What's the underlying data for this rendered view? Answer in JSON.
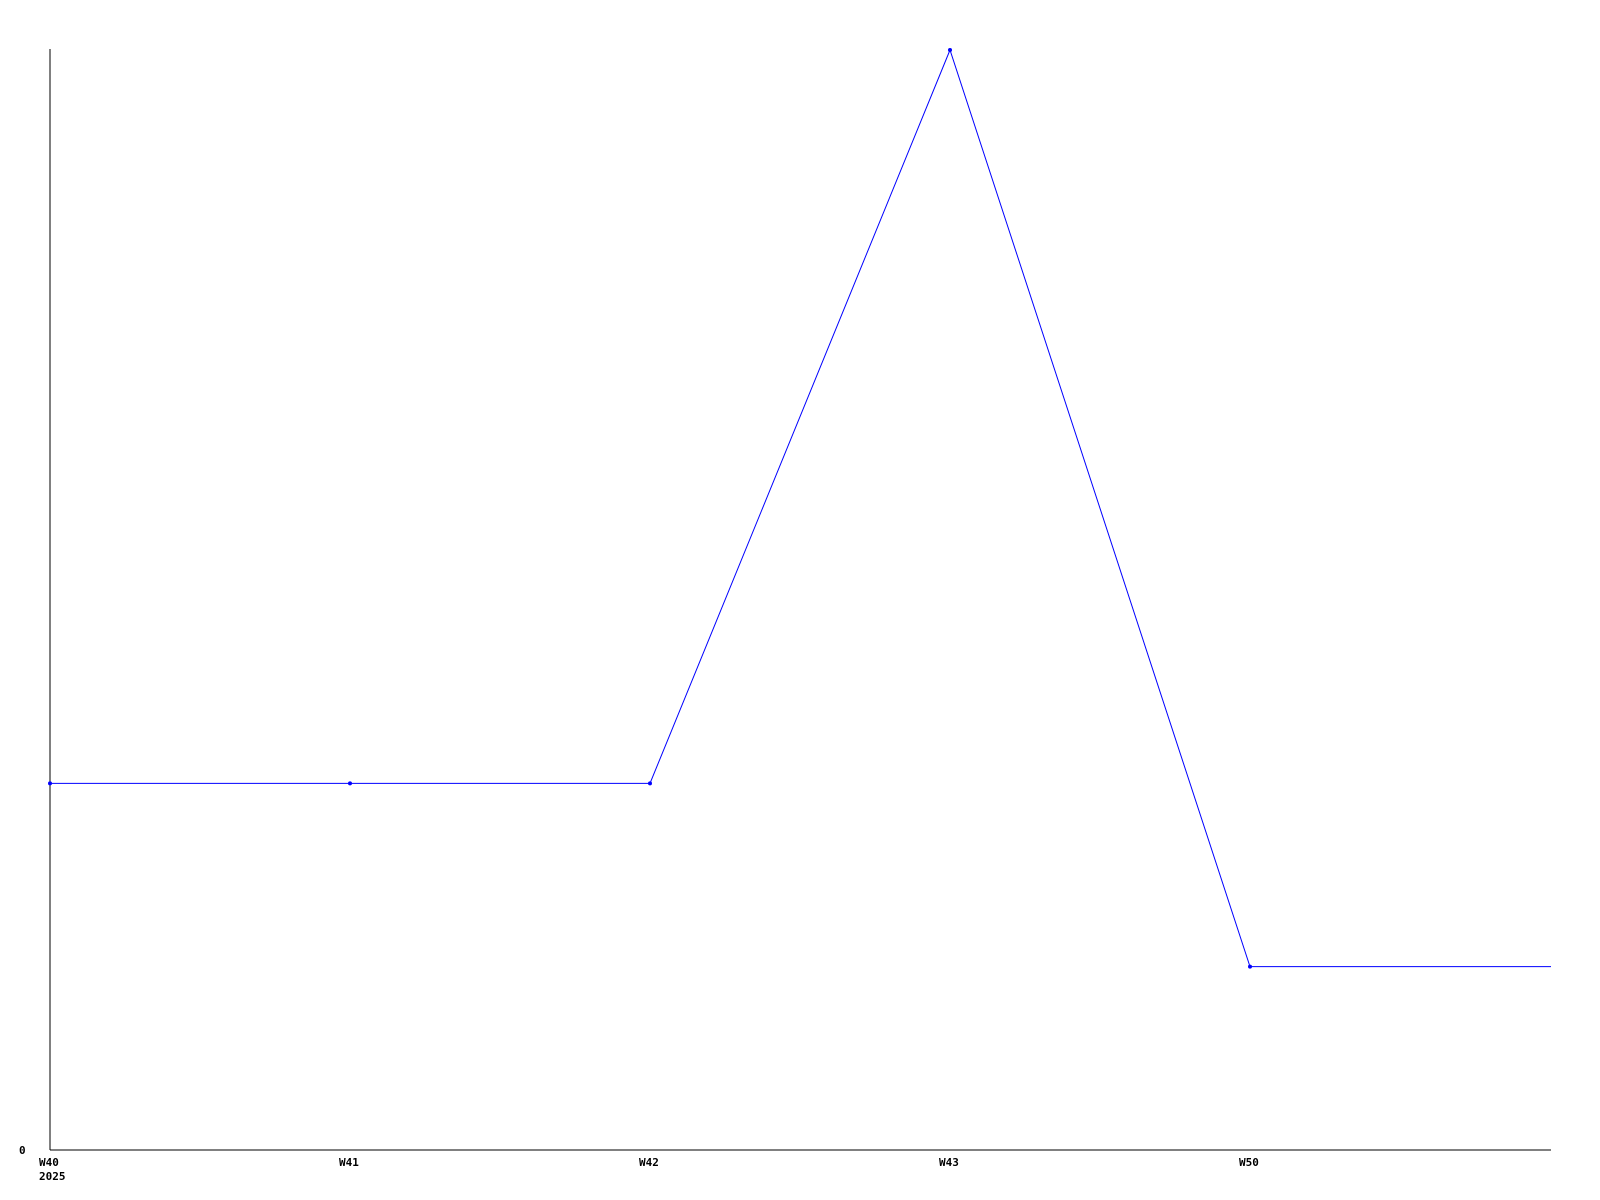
{
  "chart_data": {
    "type": "line",
    "categories": [
      "W40",
      "W41",
      "W42",
      "W43",
      "W50"
    ],
    "x_sublabel": "2025",
    "series": [
      {
        "values": [
          2,
          2,
          2,
          6,
          1
        ],
        "color": "#0000ff"
      }
    ],
    "ylim": [
      0,
      6
    ],
    "y_tick_labels": [
      "0"
    ],
    "title": "",
    "xlabel": "",
    "ylabel": "",
    "grid": false,
    "line_extends_past_last_point": true,
    "axis_color": "#000000"
  }
}
